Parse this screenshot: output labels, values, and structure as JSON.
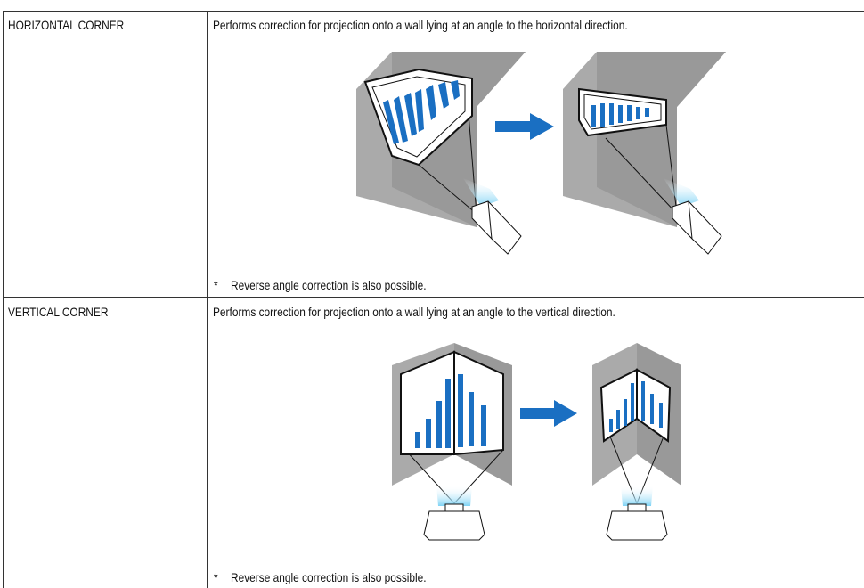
{
  "table": {
    "rows": [
      {
        "name": "HORIZONTAL CORNER",
        "description": "Performs correction for projection onto a wall lying at an angle to the horizontal direction.",
        "note_mark": "*",
        "note": "Reverse angle correction is also possible."
      },
      {
        "name": "VERTICAL CORNER",
        "description": "Performs correction for projection onto a wall lying at an angle to the vertical direction.",
        "note_mark": "*",
        "note": "Reverse angle correction is also possible."
      }
    ]
  }
}
